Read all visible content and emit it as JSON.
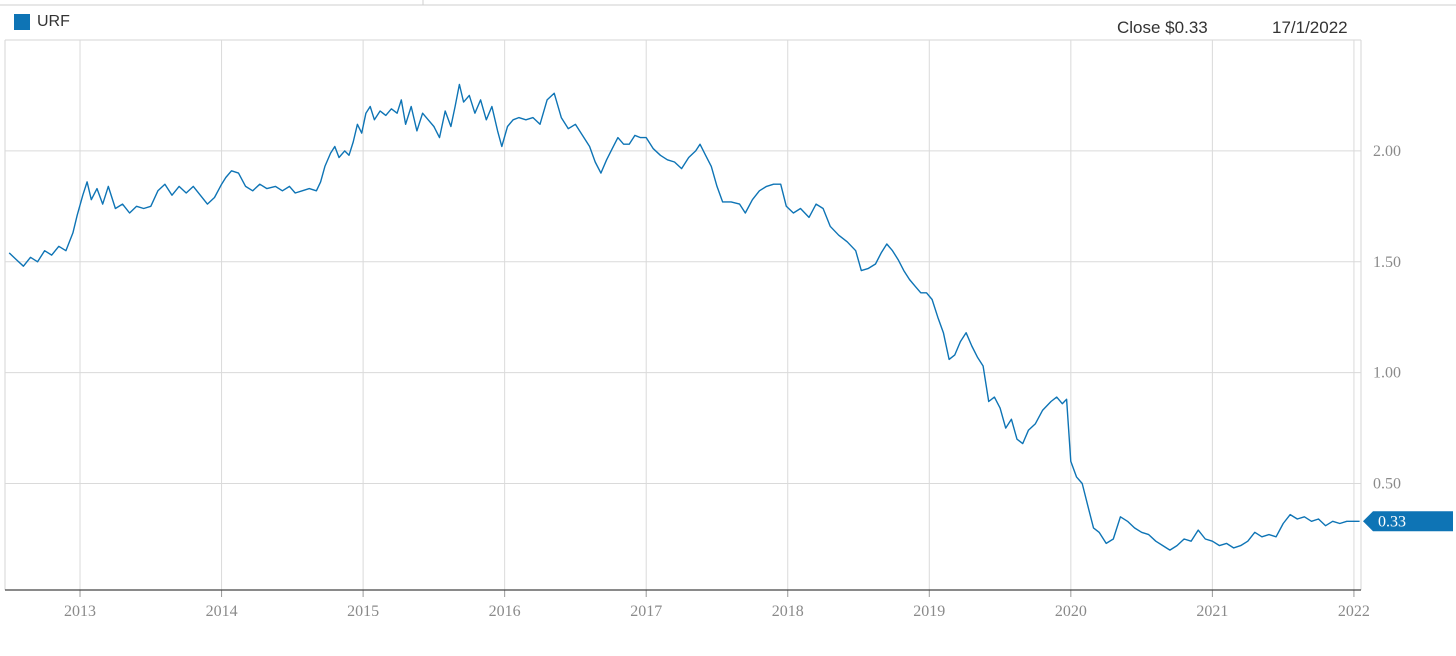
{
  "legend": {
    "label": "URF",
    "color": "#0e74b5"
  },
  "header": {
    "close_text": "Close $0.33",
    "date_text": "17/1/2022"
  },
  "end_label": "0.33",
  "chart_data": {
    "type": "line",
    "series": [
      {
        "name": "URF",
        "color": "#0e74b5",
        "points": [
          [
            2012.5,
            1.54
          ],
          [
            2012.55,
            1.51
          ],
          [
            2012.6,
            1.48
          ],
          [
            2012.65,
            1.52
          ],
          [
            2012.7,
            1.5
          ],
          [
            2012.75,
            1.55
          ],
          [
            2012.8,
            1.53
          ],
          [
            2012.85,
            1.57
          ],
          [
            2012.9,
            1.55
          ],
          [
            2012.95,
            1.63
          ],
          [
            2012.98,
            1.71
          ],
          [
            2013.02,
            1.8
          ],
          [
            2013.05,
            1.86
          ],
          [
            2013.08,
            1.78
          ],
          [
            2013.12,
            1.83
          ],
          [
            2013.16,
            1.76
          ],
          [
            2013.2,
            1.84
          ],
          [
            2013.25,
            1.74
          ],
          [
            2013.3,
            1.76
          ],
          [
            2013.35,
            1.72
          ],
          [
            2013.4,
            1.75
          ],
          [
            2013.45,
            1.74
          ],
          [
            2013.5,
            1.75
          ],
          [
            2013.55,
            1.82
          ],
          [
            2013.6,
            1.85
          ],
          [
            2013.65,
            1.8
          ],
          [
            2013.7,
            1.84
          ],
          [
            2013.75,
            1.81
          ],
          [
            2013.8,
            1.84
          ],
          [
            2013.85,
            1.8
          ],
          [
            2013.9,
            1.76
          ],
          [
            2013.95,
            1.79
          ],
          [
            2014.0,
            1.85
          ],
          [
            2014.03,
            1.88
          ],
          [
            2014.07,
            1.91
          ],
          [
            2014.12,
            1.9
          ],
          [
            2014.17,
            1.84
          ],
          [
            2014.22,
            1.82
          ],
          [
            2014.27,
            1.85
          ],
          [
            2014.32,
            1.83
          ],
          [
            2014.38,
            1.84
          ],
          [
            2014.43,
            1.82
          ],
          [
            2014.48,
            1.84
          ],
          [
            2014.52,
            1.81
          ],
          [
            2014.57,
            1.82
          ],
          [
            2014.62,
            1.83
          ],
          [
            2014.67,
            1.82
          ],
          [
            2014.7,
            1.86
          ],
          [
            2014.73,
            1.93
          ],
          [
            2014.77,
            1.99
          ],
          [
            2014.8,
            2.02
          ],
          [
            2014.83,
            1.97
          ],
          [
            2014.87,
            2.0
          ],
          [
            2014.9,
            1.98
          ],
          [
            2014.93,
            2.04
          ],
          [
            2014.96,
            2.12
          ],
          [
            2014.99,
            2.08
          ],
          [
            2015.02,
            2.17
          ],
          [
            2015.05,
            2.2
          ],
          [
            2015.08,
            2.14
          ],
          [
            2015.12,
            2.18
          ],
          [
            2015.16,
            2.16
          ],
          [
            2015.2,
            2.19
          ],
          [
            2015.24,
            2.17
          ],
          [
            2015.27,
            2.23
          ],
          [
            2015.3,
            2.12
          ],
          [
            2015.34,
            2.2
          ],
          [
            2015.38,
            2.09
          ],
          [
            2015.42,
            2.17
          ],
          [
            2015.46,
            2.14
          ],
          [
            2015.5,
            2.11
          ],
          [
            2015.54,
            2.06
          ],
          [
            2015.58,
            2.18
          ],
          [
            2015.62,
            2.11
          ],
          [
            2015.65,
            2.2
          ],
          [
            2015.68,
            2.3
          ],
          [
            2015.71,
            2.22
          ],
          [
            2015.75,
            2.25
          ],
          [
            2015.79,
            2.17
          ],
          [
            2015.83,
            2.23
          ],
          [
            2015.87,
            2.14
          ],
          [
            2015.91,
            2.2
          ],
          [
            2015.95,
            2.09
          ],
          [
            2015.98,
            2.02
          ],
          [
            2016.02,
            2.11
          ],
          [
            2016.06,
            2.14
          ],
          [
            2016.1,
            2.15
          ],
          [
            2016.15,
            2.14
          ],
          [
            2016.2,
            2.15
          ],
          [
            2016.25,
            2.12
          ],
          [
            2016.3,
            2.23
          ],
          [
            2016.35,
            2.26
          ],
          [
            2016.4,
            2.15
          ],
          [
            2016.45,
            2.1
          ],
          [
            2016.5,
            2.12
          ],
          [
            2016.55,
            2.07
          ],
          [
            2016.6,
            2.02
          ],
          [
            2016.64,
            1.95
          ],
          [
            2016.68,
            1.9
          ],
          [
            2016.72,
            1.96
          ],
          [
            2016.76,
            2.01
          ],
          [
            2016.8,
            2.06
          ],
          [
            2016.84,
            2.03
          ],
          [
            2016.88,
            2.03
          ],
          [
            2016.92,
            2.07
          ],
          [
            2016.96,
            2.06
          ],
          [
            2017.0,
            2.06
          ],
          [
            2017.05,
            2.01
          ],
          [
            2017.1,
            1.98
          ],
          [
            2017.15,
            1.96
          ],
          [
            2017.2,
            1.95
          ],
          [
            2017.25,
            1.92
          ],
          [
            2017.3,
            1.97
          ],
          [
            2017.35,
            2.0
          ],
          [
            2017.38,
            2.03
          ],
          [
            2017.42,
            1.98
          ],
          [
            2017.46,
            1.93
          ],
          [
            2017.5,
            1.84
          ],
          [
            2017.54,
            1.77
          ],
          [
            2017.6,
            1.77
          ],
          [
            2017.66,
            1.76
          ],
          [
            2017.7,
            1.72
          ],
          [
            2017.75,
            1.78
          ],
          [
            2017.8,
            1.82
          ],
          [
            2017.85,
            1.84
          ],
          [
            2017.9,
            1.85
          ],
          [
            2017.95,
            1.85
          ],
          [
            2017.99,
            1.75
          ],
          [
            2018.04,
            1.72
          ],
          [
            2018.09,
            1.74
          ],
          [
            2018.15,
            1.7
          ],
          [
            2018.2,
            1.76
          ],
          [
            2018.25,
            1.74
          ],
          [
            2018.3,
            1.66
          ],
          [
            2018.36,
            1.62
          ],
          [
            2018.42,
            1.59
          ],
          [
            2018.48,
            1.55
          ],
          [
            2018.52,
            1.46
          ],
          [
            2018.57,
            1.47
          ],
          [
            2018.62,
            1.49
          ],
          [
            2018.66,
            1.54
          ],
          [
            2018.7,
            1.58
          ],
          [
            2018.74,
            1.55
          ],
          [
            2018.78,
            1.51
          ],
          [
            2018.82,
            1.46
          ],
          [
            2018.86,
            1.42
          ],
          [
            2018.9,
            1.39
          ],
          [
            2018.94,
            1.36
          ],
          [
            2018.98,
            1.36
          ],
          [
            2019.02,
            1.33
          ],
          [
            2019.06,
            1.25
          ],
          [
            2019.1,
            1.18
          ],
          [
            2019.14,
            1.06
          ],
          [
            2019.18,
            1.08
          ],
          [
            2019.22,
            1.14
          ],
          [
            2019.26,
            1.18
          ],
          [
            2019.3,
            1.12
          ],
          [
            2019.34,
            1.07
          ],
          [
            2019.38,
            1.03
          ],
          [
            2019.42,
            0.87
          ],
          [
            2019.46,
            0.89
          ],
          [
            2019.5,
            0.84
          ],
          [
            2019.54,
            0.75
          ],
          [
            2019.58,
            0.79
          ],
          [
            2019.62,
            0.7
          ],
          [
            2019.66,
            0.68
          ],
          [
            2019.7,
            0.74
          ],
          [
            2019.75,
            0.77
          ],
          [
            2019.8,
            0.83
          ],
          [
            2019.86,
            0.87
          ],
          [
            2019.9,
            0.89
          ],
          [
            2019.94,
            0.86
          ],
          [
            2019.97,
            0.88
          ],
          [
            2020.0,
            0.6
          ],
          [
            2020.04,
            0.53
          ],
          [
            2020.08,
            0.5
          ],
          [
            2020.12,
            0.4
          ],
          [
            2020.16,
            0.3
          ],
          [
            2020.2,
            0.28
          ],
          [
            2020.25,
            0.23
          ],
          [
            2020.3,
            0.25
          ],
          [
            2020.35,
            0.35
          ],
          [
            2020.4,
            0.33
          ],
          [
            2020.45,
            0.3
          ],
          [
            2020.5,
            0.28
          ],
          [
            2020.55,
            0.27
          ],
          [
            2020.6,
            0.24
          ],
          [
            2020.65,
            0.22
          ],
          [
            2020.7,
            0.2
          ],
          [
            2020.75,
            0.22
          ],
          [
            2020.8,
            0.25
          ],
          [
            2020.85,
            0.24
          ],
          [
            2020.9,
            0.29
          ],
          [
            2020.95,
            0.25
          ],
          [
            2021.0,
            0.24
          ],
          [
            2021.05,
            0.22
          ],
          [
            2021.1,
            0.23
          ],
          [
            2021.15,
            0.21
          ],
          [
            2021.2,
            0.22
          ],
          [
            2021.25,
            0.24
          ],
          [
            2021.3,
            0.28
          ],
          [
            2021.35,
            0.26
          ],
          [
            2021.4,
            0.27
          ],
          [
            2021.45,
            0.26
          ],
          [
            2021.5,
            0.32
          ],
          [
            2021.55,
            0.36
          ],
          [
            2021.6,
            0.34
          ],
          [
            2021.65,
            0.35
          ],
          [
            2021.7,
            0.33
          ],
          [
            2021.75,
            0.34
          ],
          [
            2021.8,
            0.31
          ],
          [
            2021.85,
            0.33
          ],
          [
            2021.9,
            0.32
          ],
          [
            2021.95,
            0.33
          ],
          [
            2022.0,
            0.33
          ],
          [
            2022.04,
            0.33
          ]
        ]
      }
    ],
    "x_ticks": [
      "2013",
      "2014",
      "2015",
      "2016",
      "2017",
      "2018",
      "2019",
      "2020",
      "2021",
      "2022"
    ],
    "x_tick_values": [
      2013,
      2014,
      2015,
      2016,
      2017,
      2018,
      2019,
      2020,
      2021,
      2022
    ],
    "y_ticks": [
      "0.50",
      "1.00",
      "1.50",
      "2.00"
    ],
    "y_tick_values": [
      0.5,
      1.0,
      1.5,
      2.0
    ],
    "xlim": [
      2012.47,
      2022.05
    ],
    "ylim": [
      0.02,
      2.5
    ],
    "grid": true,
    "legend_position": "top-left"
  }
}
